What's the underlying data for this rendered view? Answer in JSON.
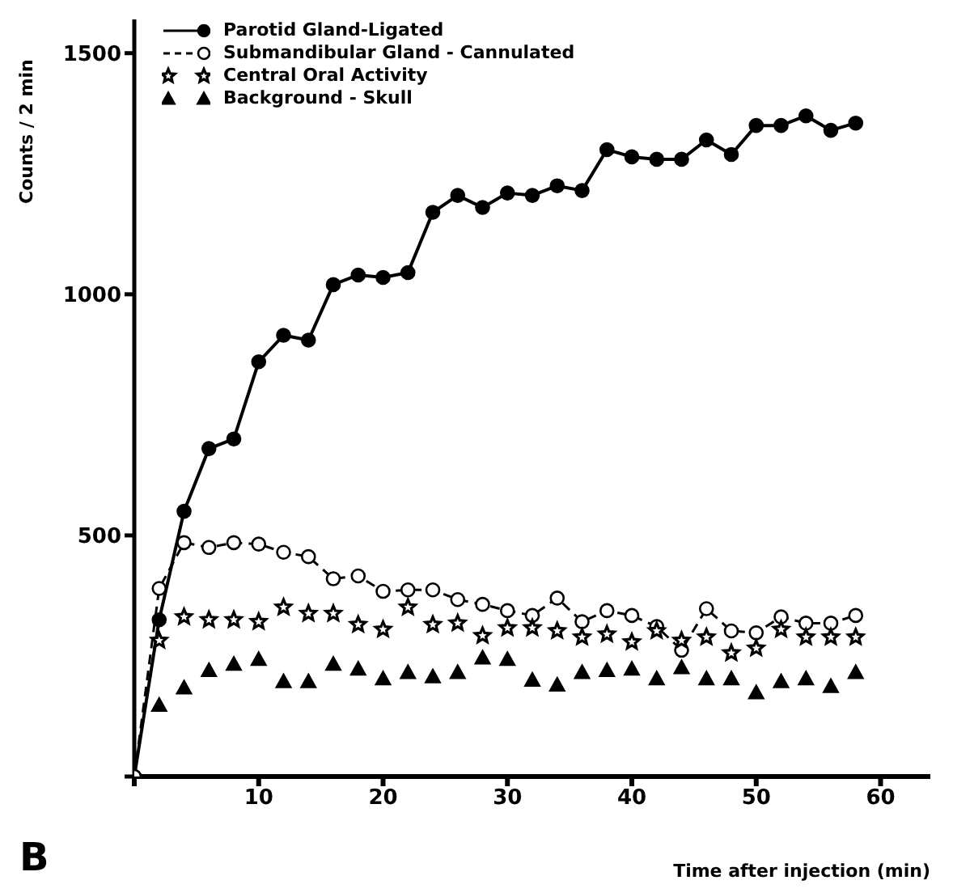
{
  "chart_data": {
    "type": "line",
    "xlabel": "Time after injection (min)",
    "ylabel": "Counts / 2 min",
    "annotations": [
      "B"
    ],
    "xlim": [
      0,
      64
    ],
    "xticks": [
      {
        "value": 0,
        "label": null
      },
      10,
      20,
      30,
      40,
      50,
      60
    ],
    "ylim": [
      0,
      1570
    ],
    "yticks": [
      {
        "value": 0,
        "label": null
      },
      500,
      1000,
      1500
    ],
    "grid": false,
    "legend": "top left",
    "series": [
      {
        "name": "Parotid Gland-Ligated",
        "color": "#000000",
        "marker": "circle",
        "line_style": "solid",
        "x": [
          0,
          2,
          4,
          6,
          8,
          10,
          12,
          14,
          16,
          18,
          20,
          22,
          24,
          26,
          28,
          30,
          32,
          34,
          36,
          38,
          40,
          42,
          44,
          46,
          48,
          50,
          52,
          54,
          56,
          58
        ],
        "values": [
          0,
          325,
          550,
          680,
          700,
          860,
          915,
          905,
          1020,
          1040,
          1035,
          1045,
          1170,
          1205,
          1180,
          1210,
          1205,
          1225,
          1215,
          1300,
          1285,
          1280,
          1280,
          1320,
          1290,
          1350,
          1350,
          1370,
          1340,
          1355
        ]
      },
      {
        "name": "Submandibular Gland - Cannulated",
        "color": "#000000",
        "marker": "circle",
        "line_style": "dashed",
        "x": [
          0,
          2,
          4,
          6,
          8,
          10,
          12,
          14,
          16,
          18,
          20,
          22,
          24,
          26,
          28,
          30,
          32,
          34,
          36,
          38,
          40,
          42,
          44,
          46,
          48,
          50,
          52,
          54,
          56,
          58
        ],
        "values": [
          0,
          390,
          485,
          475,
          485,
          482,
          465,
          456,
          410,
          416,
          384,
          387,
          387,
          367,
          357,
          344,
          334,
          370,
          321,
          344,
          334,
          311,
          262,
          348,
          302,
          298,
          331,
          318,
          318,
          334
        ]
      },
      {
        "name": "Central Oral Activity",
        "type": "scatter",
        "color": "#000000",
        "marker": "star",
        "x": [
          2,
          4,
          6,
          8,
          10,
          12,
          14,
          16,
          18,
          20,
          22,
          24,
          26,
          28,
          30,
          32,
          34,
          36,
          38,
          40,
          42,
          44,
          46,
          48,
          50,
          52,
          54,
          56,
          58
        ],
        "values": [
          282,
          331,
          325,
          325,
          321,
          351,
          338,
          338,
          315,
          305,
          351,
          315,
          318,
          292,
          308,
          308,
          302,
          289,
          295,
          279,
          302,
          282,
          289,
          256,
          266,
          305,
          289,
          289,
          289
        ]
      },
      {
        "name": "Background - Skull",
        "type": "scatter",
        "color": "#000000",
        "marker": "triangle",
        "x": [
          2,
          4,
          6,
          8,
          10,
          12,
          14,
          16,
          18,
          20,
          22,
          24,
          26,
          28,
          30,
          32,
          34,
          36,
          38,
          40,
          42,
          44,
          46,
          48,
          50,
          52,
          54,
          56,
          58
        ],
        "values": [
          148,
          184,
          220,
          233,
          243,
          197,
          197,
          233,
          223,
          203,
          216,
          207,
          216,
          246,
          243,
          200,
          190,
          216,
          220,
          223,
          203,
          226,
          203,
          203,
          174,
          197,
          203,
          187,
          216
        ]
      }
    ]
  }
}
